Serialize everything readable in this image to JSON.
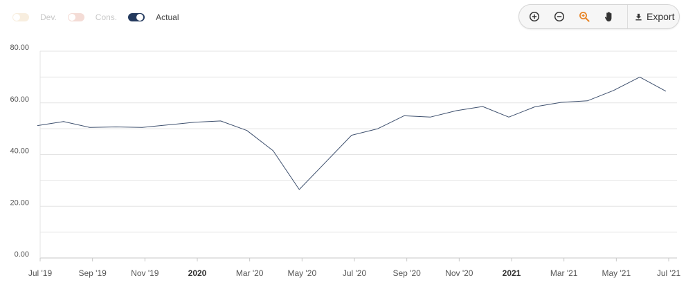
{
  "legend": {
    "items": [
      {
        "label": "Dev.",
        "state": "off",
        "track_color": "#f8eedf",
        "label_color": "#c8c8c8"
      },
      {
        "label": "Cons.",
        "state": "off",
        "track_color": "#f4dcd6",
        "label_color": "#c8c8c8"
      },
      {
        "label": "Actual",
        "state": "on",
        "track_color": "#243a5e",
        "label_color": "#444444"
      }
    ]
  },
  "toolbar": {
    "buttons": [
      {
        "name": "zoom-in-icon"
      },
      {
        "name": "zoom-out-icon"
      },
      {
        "name": "zoom-select-icon",
        "color": "#e8872a"
      },
      {
        "name": "pan-hand-icon"
      }
    ],
    "export_label": "Export",
    "export_icon": "download-icon"
  },
  "chart_data": {
    "type": "line",
    "line_color": "#3d4f6d",
    "grid": true,
    "ylim": [
      0,
      80
    ],
    "y_ticks": [
      0,
      20,
      40,
      60,
      80
    ],
    "y_tick_labels": [
      "0.00",
      "20.00",
      "40.00",
      "60.00",
      "80.00"
    ],
    "x_tick_labels": [
      "Jul '19",
      "Sep '19",
      "Nov '19",
      "2020",
      "Mar '20",
      "May '20",
      "Jul '20",
      "Sep '20",
      "Nov '20",
      "2021",
      "Mar '21",
      "May '21",
      "Jul '21"
    ],
    "x_tick_bold": [
      false,
      false,
      false,
      true,
      false,
      false,
      false,
      false,
      false,
      true,
      false,
      false,
      false
    ],
    "series": [
      {
        "x": [
          "Jul '19",
          "Aug '19",
          "Sep '19",
          "Oct '19",
          "Nov '19",
          "Dec '19",
          "Jan '20",
          "Feb '20",
          "Mar '20",
          "Apr '20",
          "May '20",
          "Jun '20",
          "Jul '20",
          "Aug '20",
          "Sep '20",
          "Oct '20",
          "Nov '20",
          "Dec '20",
          "Jan '21",
          "Feb '21",
          "Mar '21",
          "Apr '21",
          "May '21",
          "Jun '21",
          "Jul '21"
        ],
        "values": [
          51.2,
          52.8,
          50.5,
          50.7,
          50.5,
          51.5,
          52.5,
          53.0,
          49.3,
          41.5,
          26.5,
          37.0,
          47.5,
          50.0,
          55.0,
          54.5,
          57.0,
          58.6,
          54.5,
          58.5,
          60.2,
          60.8,
          64.8,
          70.0,
          64.5
        ]
      }
    ]
  }
}
